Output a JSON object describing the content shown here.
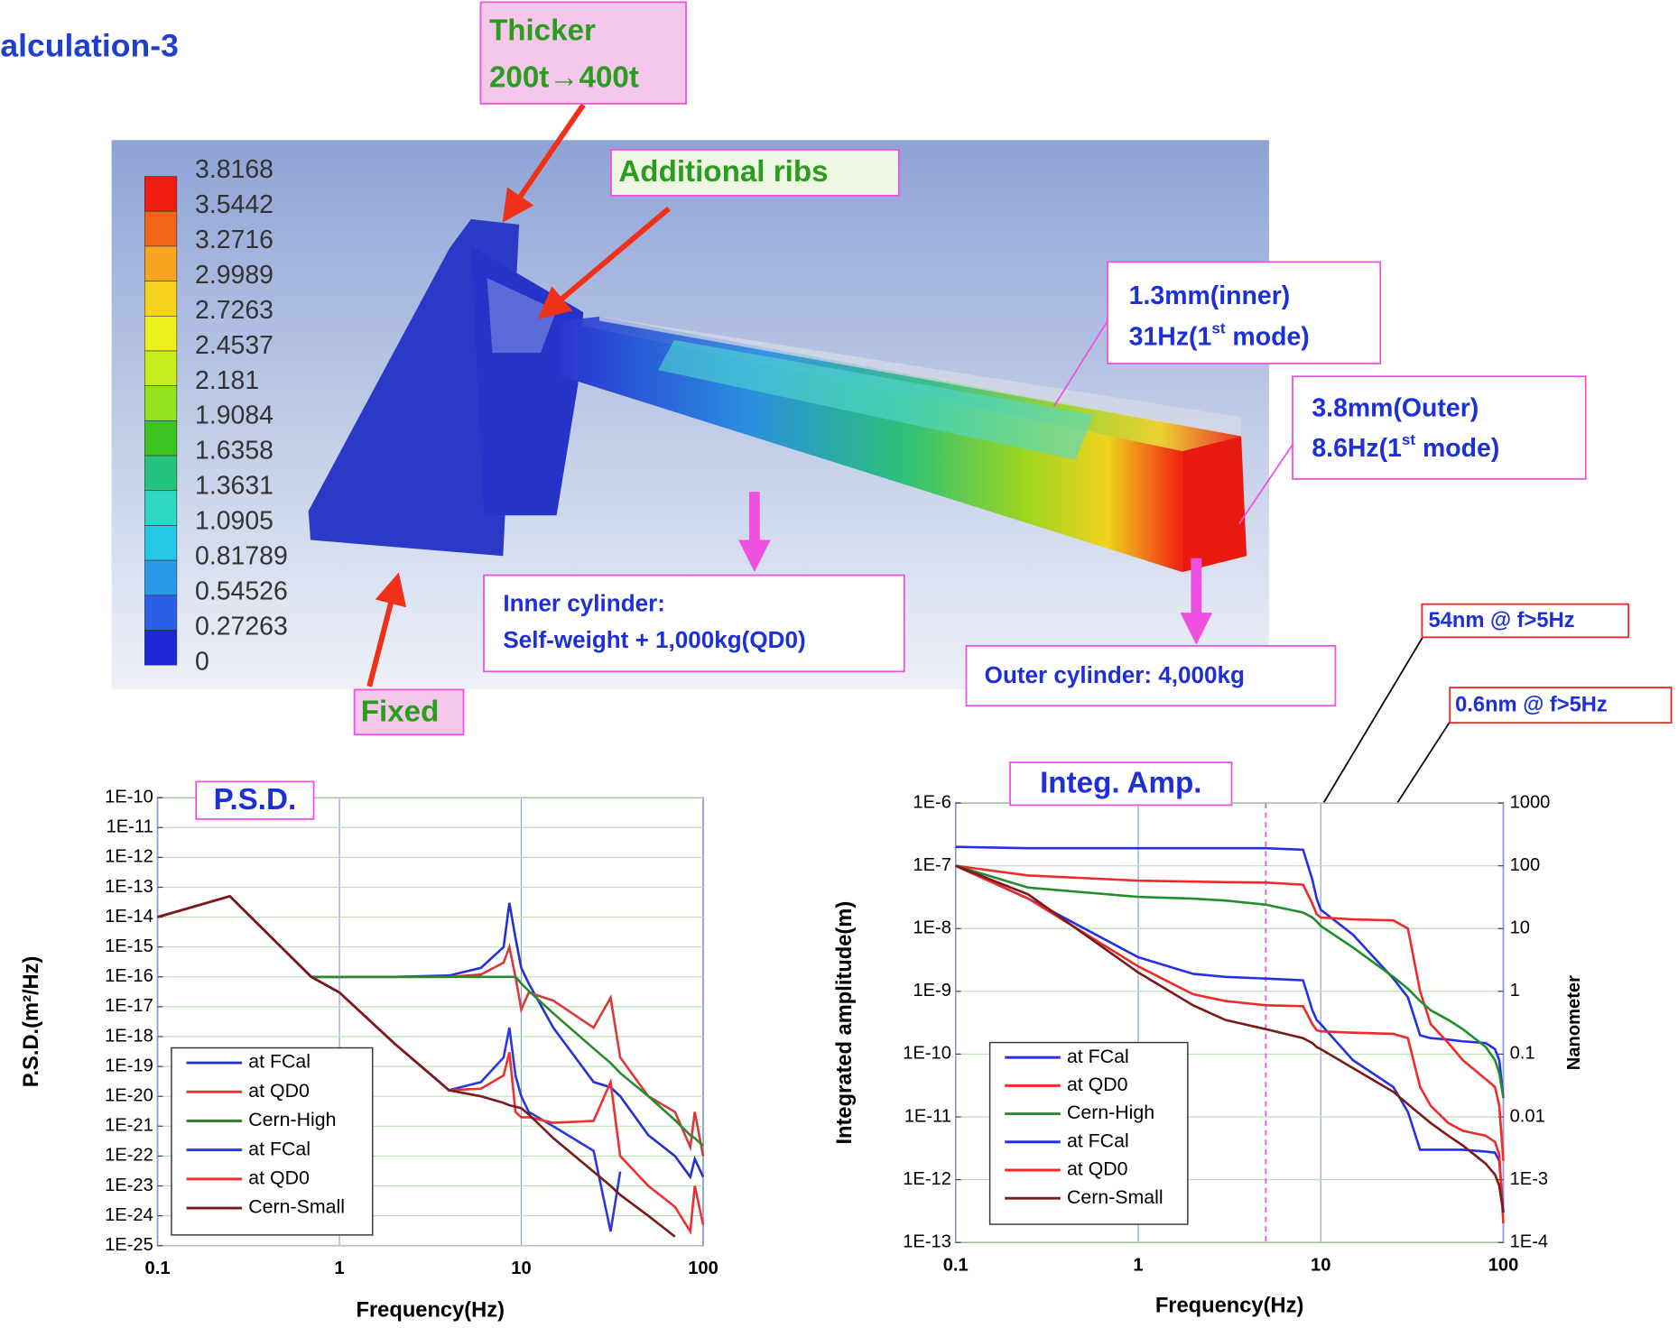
{
  "title": "alculation-3",
  "colorbar": {
    "labels": [
      "3.8168",
      "3.5442",
      "3.2716",
      "2.9989",
      "2.7263",
      "2.4537",
      "2.181",
      "1.9084",
      "1.6358",
      "1.3631",
      "1.0905",
      "0.81789",
      "0.54526",
      "0.27263",
      "0"
    ],
    "colors": [
      "#f01c10",
      "#f2641a",
      "#f5a51f",
      "#f5d21e",
      "#eef01e",
      "#c8ee1e",
      "#93e21c",
      "#3cc41e",
      "#25c47e",
      "#2fd6c4",
      "#24c8e6",
      "#2a9ae8",
      "#2a5fe6",
      "#1e28d8"
    ]
  },
  "callouts": [
    {
      "lines": [
        "Thicker",
        "200t→400t"
      ]
    },
    {
      "lines": [
        "Additional ribs"
      ]
    },
    {
      "lines": [
        "Fixed"
      ]
    },
    {
      "lines": [
        "1.3mm(inner)",
        {
          "text": "31Hz(1",
          "sup": "st",
          "tail": " mode)"
        }
      ]
    },
    {
      "lines": [
        "3.8mm(Outer)",
        {
          "text": "8.6Hz(1",
          "sup": "st",
          "tail": " mode)"
        }
      ]
    },
    {
      "lines": [
        "Inner cylinder:",
        "Self-weight + 1,000kg(QD0)"
      ]
    },
    {
      "lines": [
        "Outer cylinder: 4,000kg"
      ]
    },
    {
      "lines": [
        "54nm @ f>5Hz"
      ]
    },
    {
      "lines": [
        "0.6nm @ f>5Hz"
      ]
    }
  ],
  "chart_data": [
    {
      "type": "line",
      "title": "P.S.D.",
      "xlabel": "Frequency(Hz)",
      "ylabel": "P.S.D.(m²/Hz)",
      "log_x": true,
      "log_y": true,
      "grid": true,
      "legend": "lower left",
      "xlim": [
        0.1,
        100
      ],
      "xticks": [
        0.1,
        1,
        10,
        100
      ],
      "ylim": [
        1e-25,
        1e-10
      ],
      "yticks": [
        {
          "value": 1e-10,
          "label": "1E-10"
        },
        {
          "value": 1e-11,
          "label": "1E-11"
        },
        {
          "value": 1e-12,
          "label": "1E-12"
        },
        {
          "value": 1e-13,
          "label": "1E-13"
        },
        {
          "value": 1e-14,
          "label": "1E-14"
        },
        {
          "value": 1e-15,
          "label": "1E-15"
        },
        {
          "value": 1e-16,
          "label": "1E-16"
        },
        {
          "value": 1e-17,
          "label": "1E-17"
        },
        {
          "value": 1e-18,
          "label": "1E-18"
        },
        {
          "value": 1e-19,
          "label": "1E-19"
        },
        {
          "value": 1e-20,
          "label": "1E-20"
        },
        {
          "value": 1e-21,
          "label": "1E-21"
        },
        {
          "value": 1e-22,
          "label": "1E-22"
        },
        {
          "value": 1e-23,
          "label": "1E-23"
        },
        {
          "value": 1e-24,
          "label": "1E-24"
        },
        {
          "value": 1e-25,
          "label": "1E-25"
        }
      ],
      "x": [
        0.1,
        0.25,
        0.7,
        1,
        2,
        4,
        6,
        8,
        8.6,
        9.3,
        10,
        11,
        15,
        25,
        31,
        35,
        50,
        70,
        85,
        90,
        100
      ],
      "series": [
        {
          "name": "at FCal",
          "color": "#2430d0",
          "values": [
            1e-14,
            5e-14,
            1e-16,
            1e-16,
            1e-16,
            1.1e-16,
            2e-16,
            1e-15,
            3e-14,
            2e-15,
            2e-16,
            6e-17,
            2e-18,
            3e-20,
            2e-20,
            1e-20,
            5e-22,
            1e-22,
            2e-23,
            8e-23,
            2e-23
          ]
        },
        {
          "name": "at QD0",
          "color": "#d83a3a",
          "values": [
            1e-14,
            5e-14,
            1e-16,
            1e-16,
            1e-16,
            1e-16,
            1.2e-16,
            3e-16,
            1e-15,
            1e-16,
            8e-18,
            3e-17,
            1.6e-17,
            2e-18,
            2e-17,
            2e-19,
            1e-20,
            3e-21,
            2e-22,
            3e-21,
            1e-22
          ]
        },
        {
          "name": "Cern-High",
          "color": "#2a8a2a",
          "values": [
            1e-14,
            5e-14,
            1e-16,
            1e-16,
            1e-16,
            1e-16,
            1e-16,
            1e-16,
            1e-16,
            1e-16,
            6e-17,
            3.4e-17,
            6e-18,
            4e-19,
            1.3e-19,
            6e-20,
            1e-20,
            1.6e-21,
            5e-22,
            4e-22,
            2.2e-22
          ]
        },
        {
          "name": "at FCal",
          "color": "#2a38e0",
          "values": [
            1e-14,
            5e-14,
            1e-16,
            3e-17,
            6e-19,
            1.6e-20,
            3e-20,
            2e-19,
            2e-18,
            5e-20,
            1e-20,
            3e-21,
            1e-21,
            1.5e-22,
            3e-25,
            3e-23,
            null,
            null,
            null,
            null,
            null
          ]
        },
        {
          "name": "at QD0",
          "color": "#ee3030",
          "values": [
            1e-14,
            5e-14,
            1e-16,
            3e-17,
            6e-19,
            1.6e-20,
            1.8e-20,
            5e-20,
            3e-19,
            3e-21,
            2e-21,
            2e-21,
            1.3e-21,
            1.5e-21,
            3e-20,
            1e-22,
            1e-23,
            2e-24,
            3e-25,
            1e-23,
            5e-25
          ]
        },
        {
          "name": "Cern-Small",
          "color": "#7a1a1a",
          "values": [
            1e-14,
            5e-14,
            1e-16,
            3e-17,
            6e-19,
            1.6e-20,
            1e-20,
            6e-21,
            5e-21,
            4.5e-21,
            4e-21,
            2.5e-21,
            4e-22,
            3e-23,
            1e-23,
            5e-24,
            1e-24,
            2e-25,
            null,
            null,
            null
          ]
        }
      ]
    },
    {
      "type": "line",
      "title": "Integ. Amp.",
      "xlabel": "Frequency(Hz)",
      "ylabel": "Integrated amplitude(m)",
      "y2label": "Nanometer",
      "log_x": true,
      "log_y": true,
      "grid": true,
      "legend": "lower left",
      "xlim": [
        0.1,
        100
      ],
      "xticks": [
        0.1,
        1,
        10,
        100
      ],
      "ylim": [
        1e-13,
        1e-06
      ],
      "yticks": [
        {
          "value": 1e-06,
          "label": "1E-6"
        },
        {
          "value": 1e-07,
          "label": "1E-7"
        },
        {
          "value": 1e-08,
          "label": "1E-8"
        },
        {
          "value": 1e-09,
          "label": "1E-9"
        },
        {
          "value": 1e-10,
          "label": "1E-10"
        },
        {
          "value": 1e-11,
          "label": "1E-11"
        },
        {
          "value": 1e-12,
          "label": "1E-12"
        },
        {
          "value": 1e-13,
          "label": "1E-13"
        }
      ],
      "y2lim": [
        0.0001,
        1000
      ],
      "y2ticks": [
        1000,
        100,
        10,
        1,
        0.1,
        0.01,
        {
          "value": 0.001,
          "label": "1E-3"
        },
        {
          "value": 0.0001,
          "label": "1E-4"
        }
      ],
      "vline": 5,
      "x": [
        0.1,
        0.25,
        1,
        2,
        3,
        5,
        8,
        9,
        9.5,
        10,
        15,
        25,
        30,
        35,
        40,
        50,
        60,
        80,
        90,
        95,
        100
      ],
      "series": [
        {
          "name": "at FCal",
          "color": "#2430e8",
          "values": [
            2e-07,
            1.9e-07,
            1.9e-07,
            1.9e-07,
            1.9e-07,
            1.9e-07,
            1.8e-07,
            6e-08,
            3e-08,
            2e-08,
            8e-09,
            1.6e-09,
            8e-10,
            2e-10,
            1.8e-10,
            1.7e-10,
            1.6e-10,
            1.5e-10,
            1.2e-10,
            8e-11,
            2e-11
          ]
        },
        {
          "name": "at QD0",
          "color": "#f02a2a",
          "values": [
            1e-07,
            7e-08,
            5.8e-08,
            5.6e-08,
            5.5e-08,
            5.4e-08,
            5e-08,
            2.5e-08,
            1.7e-08,
            1.5e-08,
            1.4e-08,
            1.35e-08,
            1e-08,
            1e-09,
            3e-10,
            1.5e-10,
            8e-11,
            4e-11,
            3e-11,
            1.5e-11,
            2e-12
          ]
        },
        {
          "name": "Cern-High",
          "color": "#1f8f2a",
          "values": [
            1e-07,
            4.5e-08,
            3.2e-08,
            3e-08,
            2.8e-08,
            2.4e-08,
            1.8e-08,
            1.5e-08,
            1.3e-08,
            1.1e-08,
            5e-09,
            1.7e-09,
            1.1e-09,
            7e-10,
            5e-10,
            3.5e-10,
            2.5e-10,
            1.3e-10,
            8e-11,
            5e-11,
            2e-11
          ]
        },
        {
          "name": "at FCal",
          "color": "#2430e8",
          "values": [
            1e-07,
            3e-08,
            3.5e-09,
            1.9e-09,
            1.7e-09,
            1.6e-09,
            1.5e-09,
            5e-10,
            3.5e-10,
            3e-10,
            8e-11,
            3e-11,
            1.2e-11,
            3e-12,
            3e-12,
            3e-12,
            3e-12,
            2.8e-12,
            2.7e-12,
            2e-12,
            3e-13
          ]
        },
        {
          "name": "at QD0",
          "color": "#f02a2a",
          "values": [
            1e-07,
            3e-08,
            2.5e-09,
            9e-10,
            7e-10,
            6e-10,
            5.8e-10,
            3e-10,
            2.4e-10,
            2.3e-10,
            2.2e-10,
            2.1e-10,
            1.8e-10,
            3e-11,
            1.5e-11,
            8e-12,
            6e-12,
            5e-12,
            4e-12,
            2.5e-12,
            2e-13
          ]
        },
        {
          "name": "Cern-Small",
          "color": "#7a1a1a",
          "values": [
            1e-07,
            3.5e-08,
            2e-09,
            6e-10,
            3.5e-10,
            2.5e-10,
            1.8e-10,
            1.5e-10,
            1.3e-10,
            1.2e-10,
            6e-11,
            2.5e-11,
            1.6e-11,
            1.1e-11,
            8e-12,
            5e-12,
            3.5e-12,
            1.8e-12,
            1.2e-12,
            8e-13,
            3e-13
          ]
        }
      ]
    }
  ]
}
